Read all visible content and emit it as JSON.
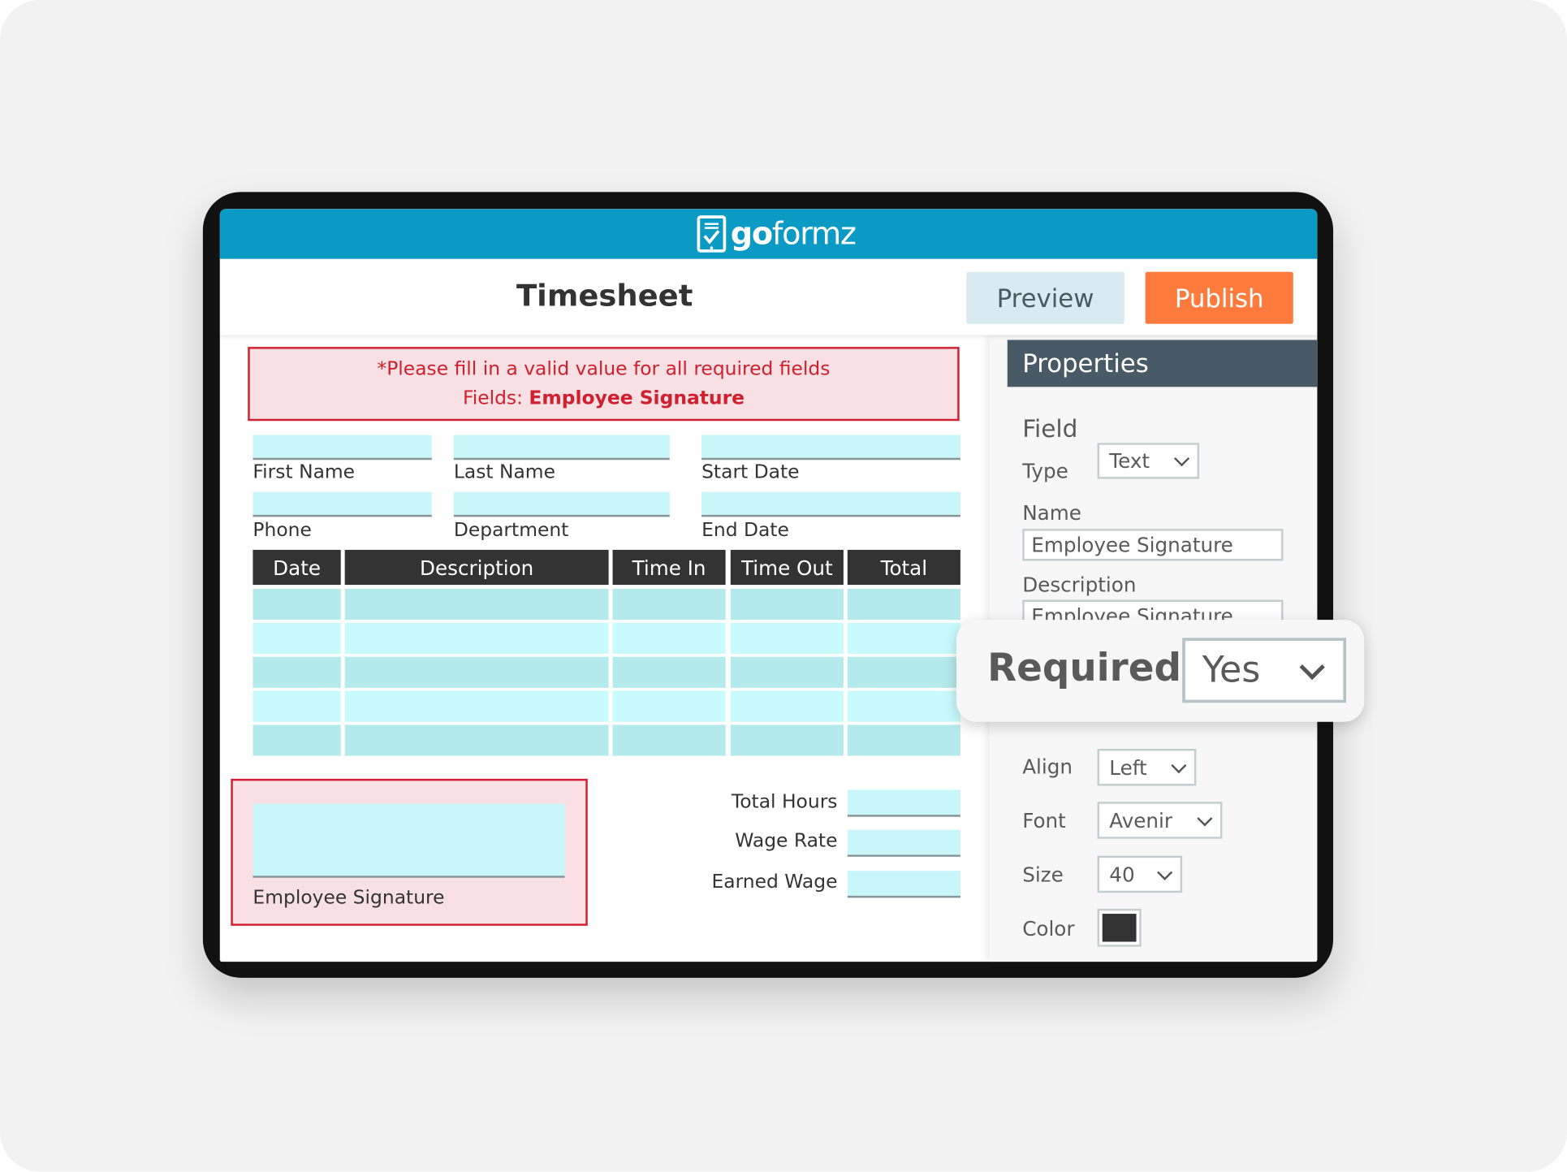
{
  "app": {
    "logo_text_bold": "go",
    "logo_text_light": "formz",
    "logo_icon": "tablet-check-icon",
    "header_color": "#0b9ac4"
  },
  "toolbar": {
    "title": "Timesheet",
    "preview_label": "Preview",
    "publish_label": "Publish",
    "publish_color": "#ff7a3d"
  },
  "error": {
    "line1": "*Please fill in a valid value for all required fields",
    "fields_prefix": "Fields: ",
    "fields_value": "Employee Signature",
    "color": "#d0202e"
  },
  "form": {
    "fields": [
      {
        "label": "First Name"
      },
      {
        "label": "Last Name"
      },
      {
        "label": "Start Date"
      },
      {
        "label": "Phone"
      },
      {
        "label": "Department"
      },
      {
        "label": "End Date"
      }
    ],
    "table": {
      "columns": [
        "Date",
        "Description",
        "Time In",
        "Time Out",
        "Total"
      ],
      "row_count": 5
    },
    "signature_label": "Employee Signature",
    "totals": [
      {
        "label": "Total Hours"
      },
      {
        "label": "Wage Rate"
      },
      {
        "label": "Earned Wage"
      }
    ]
  },
  "properties": {
    "header": "Properties",
    "section": "Field",
    "type_label": "Type",
    "type_value": "Text",
    "name_label": "Name",
    "name_value": "Employee Signature",
    "description_label": "Description",
    "description_value": "Employee Signature",
    "required_label": "Required",
    "required_value": "Yes",
    "align_label": "Align",
    "align_value": "Left",
    "font_label": "Font",
    "font_value": "Avenir",
    "size_label": "Size",
    "size_value": "40",
    "color_label": "Color",
    "color_value": "#333333"
  }
}
